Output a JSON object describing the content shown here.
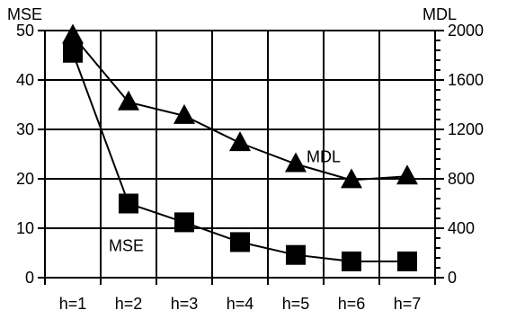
{
  "chart_data": {
    "type": "line",
    "categories": [
      "h=1",
      "h=2",
      "h=3",
      "h=4",
      "h=5",
      "h=6",
      "h=7"
    ],
    "series": [
      {
        "name": "MSE",
        "axis": "left",
        "marker": "square",
        "values": [
          45.5,
          15,
          11.2,
          7.2,
          4.6,
          3.3,
          3.3
        ]
      },
      {
        "name": "MDL",
        "axis": "right",
        "marker": "triangle",
        "values": [
          1960,
          1420,
          1310,
          1090,
          920,
          790,
          820
        ]
      }
    ],
    "left_axis": {
      "label": "MSE",
      "ylim": [
        0,
        50
      ],
      "ticks": [
        0,
        10,
        20,
        30,
        40,
        50
      ]
    },
    "right_axis": {
      "label": "MDL",
      "ylim": [
        0,
        2000
      ],
      "ticks": [
        0,
        400,
        800,
        1200,
        1600,
        2000
      ]
    },
    "annotations": [
      {
        "text": "MDL",
        "series": "MDL"
      },
      {
        "text": "MSE",
        "series": "MSE"
      }
    ],
    "grid": true,
    "legend": "none",
    "line_color": "#000000"
  }
}
